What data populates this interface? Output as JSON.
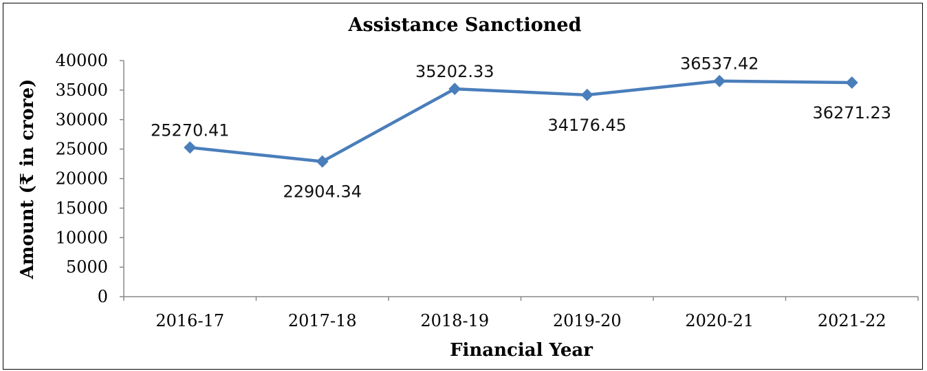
{
  "chart_data": {
    "type": "line",
    "title": "Assistance Sanctioned",
    "xlabel": "Financial Year",
    "ylabel": "Amount (₹ in crore)",
    "categories": [
      "2016-17",
      "2017-18",
      "2018-19",
      "2019-20",
      "2020-21",
      "2021-22"
    ],
    "series": [
      {
        "values": [
          25270.41,
          22904.34,
          35202.33,
          34176.45,
          36537.42,
          36271.23
        ],
        "labels": [
          "25270.41",
          "22904.34",
          "35202.33",
          "34176.45",
          "36537.42",
          "36271.23"
        ],
        "label_positions": [
          "above",
          "below",
          "above",
          "below",
          "above",
          "below"
        ],
        "color": "#4A7EBB",
        "marker": "diamond"
      }
    ],
    "ylim": [
      0,
      40000
    ],
    "yticks": [
      0,
      5000,
      10000,
      15000,
      20000,
      25000,
      30000,
      35000,
      40000
    ],
    "grid": false,
    "legend": "none"
  }
}
